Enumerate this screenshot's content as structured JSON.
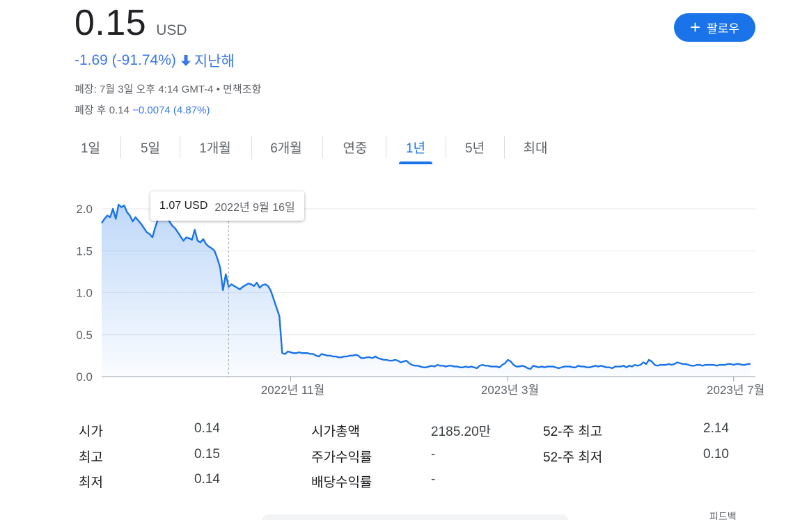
{
  "quote": {
    "price": "0.15",
    "currency": "USD",
    "change_text": "-1.69 (-91.74%)",
    "change_period": "지난해",
    "closed_prefix": "폐장: ",
    "closed_time": "7월 3일 오후 4:14 GMT-4",
    "separator": " • ",
    "disclaimer": "면책조항",
    "after_hours_prefix": "폐장 후 ",
    "after_hours_price": "0.14",
    "after_hours_change": "−0.0074 (4.87%)",
    "colors": {
      "accent": "#1a73e8",
      "negative": "#3b78e7"
    }
  },
  "follow_button": {
    "label": "팔로우",
    "icon": "plus-icon"
  },
  "tabs": [
    {
      "label": "1일",
      "active": false
    },
    {
      "label": "5일",
      "active": false
    },
    {
      "label": "1개월",
      "active": false
    },
    {
      "label": "6개월",
      "active": false
    },
    {
      "label": "연중",
      "active": false
    },
    {
      "label": "1년",
      "active": true
    },
    {
      "label": "5년",
      "active": false
    },
    {
      "label": "최대",
      "active": false
    }
  ],
  "tooltip": {
    "price": "1.07 USD",
    "date": "2022년 9월 16일"
  },
  "chart_data": {
    "type": "area",
    "x_ticks": [
      "2022년 11월",
      "2023년 3월",
      "2023년 7월"
    ],
    "y_ticks": [
      "2.0",
      "1.5",
      "1.0",
      "0.5",
      "0.0"
    ],
    "ylim": [
      0,
      2.0
    ],
    "grid": true,
    "line_color": "#1a73e8",
    "series": [
      {
        "values": [
          1.83,
          1.88,
          1.92,
          1.9,
          2.0,
          1.88,
          2.05,
          2.02,
          2.04,
          1.96,
          1.92,
          1.85,
          1.9,
          1.86,
          1.82,
          1.77,
          1.72,
          1.7,
          1.66,
          1.78,
          1.88,
          1.98,
          1.93,
          1.9,
          1.85,
          1.8,
          1.77,
          1.72,
          1.67,
          1.62,
          1.66,
          1.65,
          1.63,
          1.75,
          1.62,
          1.6,
          1.64,
          1.58,
          1.55,
          1.53,
          1.5,
          1.41,
          1.3,
          1.03,
          1.22,
          1.07,
          1.1,
          1.08,
          1.06,
          1.04,
          1.07,
          1.09,
          1.11,
          1.1,
          1.08,
          1.12,
          1.06,
          1.09,
          1.1,
          1.08,
          1.02,
          0.92,
          0.82,
          0.72,
          0.28,
          0.27,
          0.3,
          0.29,
          0.28,
          0.28,
          0.29,
          0.28,
          0.28,
          0.28,
          0.27,
          0.27,
          0.25,
          0.24,
          0.27,
          0.26,
          0.25,
          0.25,
          0.24,
          0.24,
          0.23,
          0.23,
          0.24,
          0.24,
          0.25,
          0.25,
          0.26,
          0.25,
          0.22,
          0.22,
          0.23,
          0.23,
          0.22,
          0.24,
          0.22,
          0.21,
          0.2,
          0.2,
          0.19,
          0.19,
          0.2,
          0.19,
          0.17,
          0.18,
          0.19,
          0.16,
          0.14,
          0.13,
          0.13,
          0.12,
          0.11,
          0.11,
          0.12,
          0.13,
          0.12,
          0.14,
          0.13,
          0.13,
          0.12,
          0.13,
          0.13,
          0.12,
          0.12,
          0.11,
          0.11,
          0.12,
          0.11,
          0.12,
          0.11,
          0.1,
          0.13,
          0.14,
          0.13,
          0.13,
          0.12,
          0.12,
          0.12,
          0.11,
          0.14,
          0.16,
          0.2,
          0.18,
          0.14,
          0.12,
          0.12,
          0.13,
          0.12,
          0.1,
          0.09,
          0.13,
          0.12,
          0.11,
          0.12,
          0.11,
          0.12,
          0.12,
          0.12,
          0.11,
          0.1,
          0.11,
          0.12,
          0.12,
          0.12,
          0.11,
          0.11,
          0.13,
          0.12,
          0.12,
          0.11,
          0.11,
          0.12,
          0.13,
          0.12,
          0.13,
          0.12,
          0.11,
          0.11,
          0.1,
          0.12,
          0.12,
          0.12,
          0.13,
          0.11,
          0.13,
          0.12,
          0.14,
          0.13,
          0.14,
          0.17,
          0.15,
          0.2,
          0.18,
          0.14,
          0.13,
          0.14,
          0.14,
          0.14,
          0.15,
          0.14,
          0.15,
          0.17,
          0.16,
          0.15,
          0.15,
          0.14,
          0.13,
          0.13,
          0.14,
          0.14,
          0.13,
          0.14,
          0.14,
          0.14,
          0.14,
          0.13,
          0.14,
          0.14,
          0.14,
          0.15,
          0.15,
          0.14,
          0.15,
          0.15,
          0.14,
          0.14,
          0.15,
          0.15
        ]
      }
    ],
    "highlight": {
      "value": 1.07,
      "index": 45
    }
  },
  "stats": [
    {
      "label": "시가",
      "value": "0.14"
    },
    {
      "label": "최고",
      "value": "0.15"
    },
    {
      "label": "최저",
      "value": "0.14"
    },
    {
      "label": "시가총액",
      "value": "2185.20만"
    },
    {
      "label": "주가수익률",
      "value": "-"
    },
    {
      "label": "배당수익률",
      "value": "-"
    },
    {
      "label": "52-주 최고",
      "value": "2.14"
    },
    {
      "label": "52-주 최저",
      "value": "0.10"
    }
  ],
  "feedback": "피드백"
}
